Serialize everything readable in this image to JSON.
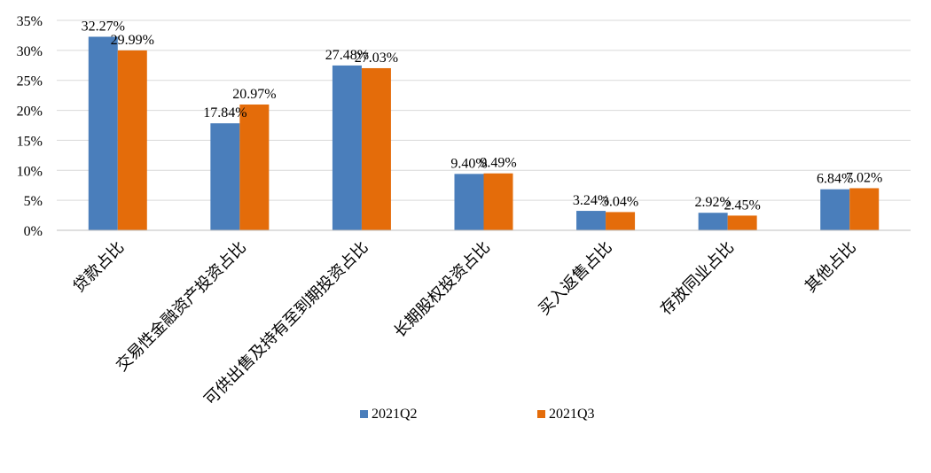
{
  "chart_data": {
    "type": "bar",
    "title": "",
    "xlabel": "",
    "ylabel": "",
    "ylim": [
      0,
      35
    ],
    "yticks": [
      "0%",
      "5%",
      "10%",
      "15%",
      "20%",
      "25%",
      "30%",
      "35%"
    ],
    "grid": true,
    "legend_position": "bottom",
    "categories": [
      "贷款占比",
      "交易性金融资产投资占比",
      "可供出售及持有至到期投资占比",
      "长期股权投资占比",
      "买入返售占比",
      "存放同业占比",
      "其他占比"
    ],
    "series": [
      {
        "name": "2021Q2",
        "color": "#4a7ebb",
        "values": [
          32.27,
          17.84,
          27.48,
          9.4,
          3.24,
          2.92,
          6.84
        ],
        "labels": [
          "32.27%",
          "17.84%",
          "27.48%",
          "9.40%",
          "3.24%",
          "2.92%",
          "6.84%"
        ]
      },
      {
        "name": "2021Q3",
        "color": "#e46c0a",
        "values": [
          29.99,
          20.97,
          27.03,
          9.49,
          3.04,
          2.45,
          7.02
        ],
        "labels": [
          "29.99%",
          "20.97%",
          "27.03%",
          "9.49%",
          "3.04%",
          "2.45%",
          "7.02%"
        ]
      }
    ]
  }
}
